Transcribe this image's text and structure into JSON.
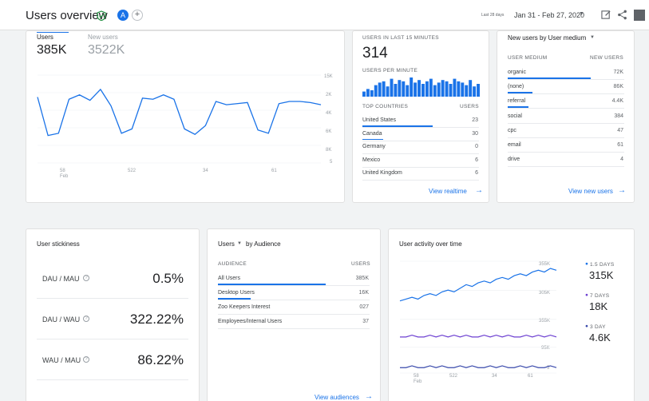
{
  "header": {
    "title": "Users overview",
    "avatar_letter": "A",
    "add_symbol": "+",
    "date_label": "Last 28 days",
    "date_range": "Jan 31 - Feb 27, 2020"
  },
  "users_card": {
    "users_label": "Users",
    "users_value": "385K",
    "new_users_label": "New users",
    "new_users_value": "3522K",
    "y_ticks": [
      "15K",
      "2K",
      "4K",
      "6K",
      "8K",
      "5"
    ],
    "x_ticks": [
      "58\nFeb",
      "522",
      "34",
      "61"
    ],
    "x_tick_1": "58",
    "x_tick_1b": "Feb",
    "x_tick_2": "522",
    "x_tick_3": "34",
    "x_tick_4": "61",
    "series": [
      60,
      25,
      27,
      58,
      62,
      57,
      67,
      52,
      27,
      31,
      59,
      58,
      62,
      58,
      31,
      26,
      34,
      56,
      53,
      54,
      55,
      30,
      27,
      54,
      56,
      56,
      55,
      53
    ]
  },
  "realtime": {
    "title": "USERS IN LAST 15 MINUTES",
    "value": "314",
    "per_minute_label": "USERS PER MINUTE",
    "bars": [
      4,
      6,
      5,
      9,
      11,
      12,
      8,
      14,
      10,
      13,
      12,
      9,
      15,
      11,
      13,
      10,
      12,
      14,
      9,
      11,
      13,
      12,
      10,
      14,
      12,
      11,
      9,
      13,
      8,
      10
    ],
    "countries_header": "TOP COUNTRIES",
    "users_header": "USERS",
    "countries": [
      {
        "name": "United States",
        "value": "23",
        "fill": 1.0
      },
      {
        "name": "Canada",
        "value": "30",
        "fill": 0.3
      },
      {
        "name": "Germany",
        "value": "0",
        "fill": 0.0
      },
      {
        "name": "Mexico",
        "value": "6",
        "fill": 0.0
      },
      {
        "name": "United Kingdom",
        "value": "6",
        "fill": 0.0
      }
    ],
    "link": "View realtime"
  },
  "medium": {
    "title": "New users by User medium",
    "col1": "USER MEDIUM",
    "col2": "NEW USERS",
    "rows": [
      {
        "name": "organic",
        "value": "72K",
        "fill": 1.0
      },
      {
        "name": "(none)",
        "value": "86K",
        "fill": 0.3
      },
      {
        "name": "referral",
        "value": "4.4K",
        "fill": 0.25
      },
      {
        "name": "social",
        "value": "384",
        "fill": 0.0
      },
      {
        "name": "cpc",
        "value": "47",
        "fill": 0.0
      },
      {
        "name": "email",
        "value": "61",
        "fill": 0.0
      },
      {
        "name": "drive",
        "value": "4",
        "fill": 0.0
      }
    ],
    "link": "View new users"
  },
  "stickiness": {
    "title": "User stickiness",
    "rows": [
      {
        "label": "DAU / MAU",
        "value": "0.5%"
      },
      {
        "label": "DAU / WAU",
        "value": "322.22%"
      },
      {
        "label": "WAU / MAU",
        "value": "86.22%"
      }
    ]
  },
  "audience": {
    "title_part1": "Users",
    "title_part2": "by Audience",
    "col1": "AUDIENCE",
    "col2": "USERS",
    "rows": [
      {
        "name": "All Users",
        "value": "385K",
        "fill": 1.0
      },
      {
        "name": "Desktop Users",
        "value": "16K",
        "fill": 0.3
      },
      {
        "name": "Zoo Keepers Interest",
        "value": "027",
        "fill": 0.0
      },
      {
        "name": "Employees/Internal Users",
        "value": "37",
        "fill": 0.0
      }
    ],
    "link": "View audiences"
  },
  "activity": {
    "title": "User activity over time",
    "y_ticks": [
      "355K",
      "305K",
      "355K",
      "95K",
      "5"
    ],
    "x_tick_1": "58",
    "x_tick_1b": "Feb",
    "x_tick_2": "522",
    "x_tick_3": "34",
    "x_tick_4": "61",
    "legend": [
      {
        "label": "1.5 DAYS",
        "value": "315K",
        "color": "#1a73e8"
      },
      {
        "label": "7 DAYS",
        "value": "18K",
        "color": "#6c3fd1"
      },
      {
        "label": "3 DAY",
        "value": "4.6K",
        "color": "#3949ab"
      }
    ],
    "series_30": [
      40,
      41,
      42,
      41,
      43,
      44,
      43,
      45,
      46,
      45,
      47,
      49,
      48,
      50,
      51,
      50,
      52,
      53,
      52,
      54,
      55,
      54,
      56,
      57,
      56,
      58,
      57
    ],
    "series_7": [
      20,
      20,
      21,
      20,
      20,
      21,
      20,
      21,
      20,
      21,
      20,
      21,
      20,
      20,
      21,
      20,
      21,
      20,
      21,
      20,
      20,
      21,
      20,
      21,
      20,
      21,
      20
    ],
    "series_1": [
      3,
      3,
      4,
      3,
      3,
      4,
      3,
      4,
      3,
      3,
      4,
      3,
      4,
      3,
      3,
      4,
      3,
      4,
      3,
      3,
      4,
      3,
      4,
      3,
      3,
      4,
      3
    ]
  }
}
